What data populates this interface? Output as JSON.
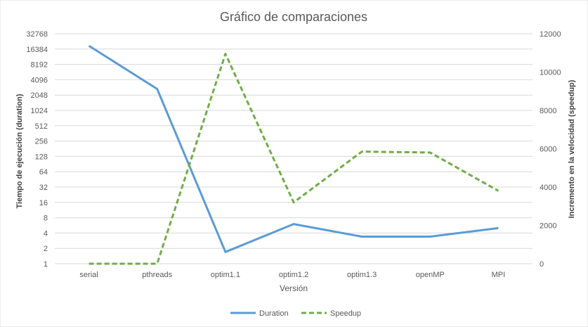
{
  "chart_data": {
    "type": "line",
    "title": "Gráfico de comparaciones",
    "xlabel": "Versión",
    "ylabel_left": "Tiempo de ejecución (duration)",
    "ylabel_right": "Incremento en la velocidad  (speedup)",
    "categories": [
      "serial",
      "pthreads",
      "optim1.1",
      "optim1.2",
      "optim1.3",
      "openMP",
      "MPI"
    ],
    "y_left": {
      "scale": "log2",
      "ticks": [
        1,
        2,
        4,
        8,
        16,
        32,
        64,
        128,
        256,
        512,
        1024,
        2048,
        4096,
        8192,
        16384,
        32768
      ],
      "tick_labels": [
        "1",
        "2",
        "4",
        "8",
        "16",
        "32",
        "64",
        "128",
        "256",
        "512",
        "1024",
        "2048",
        "4096",
        "8192",
        "16384",
        "32768"
      ],
      "ylim": [
        1,
        32768
      ]
    },
    "y_right": {
      "scale": "linear",
      "ticks": [
        0,
        2000,
        4000,
        6000,
        8000,
        10000,
        12000
      ],
      "tick_labels": [
        "0",
        "2000",
        "4000",
        "6000",
        "8000",
        "10000",
        "12000"
      ],
      "ylim": [
        0,
        12000
      ]
    },
    "grid": true,
    "legend_position": "bottom",
    "series": [
      {
        "name": "Duration",
        "axis": "left",
        "color": "#5b9bd5",
        "dash": "solid",
        "values": [
          19000,
          2700,
          1.7,
          6,
          3.4,
          3.4,
          5
        ]
      },
      {
        "name": "Speedup",
        "axis": "right",
        "color": "#70ad47",
        "dash": "dashed",
        "values": [
          0,
          0,
          10950,
          3200,
          5850,
          5800,
          3800
        ]
      }
    ]
  }
}
